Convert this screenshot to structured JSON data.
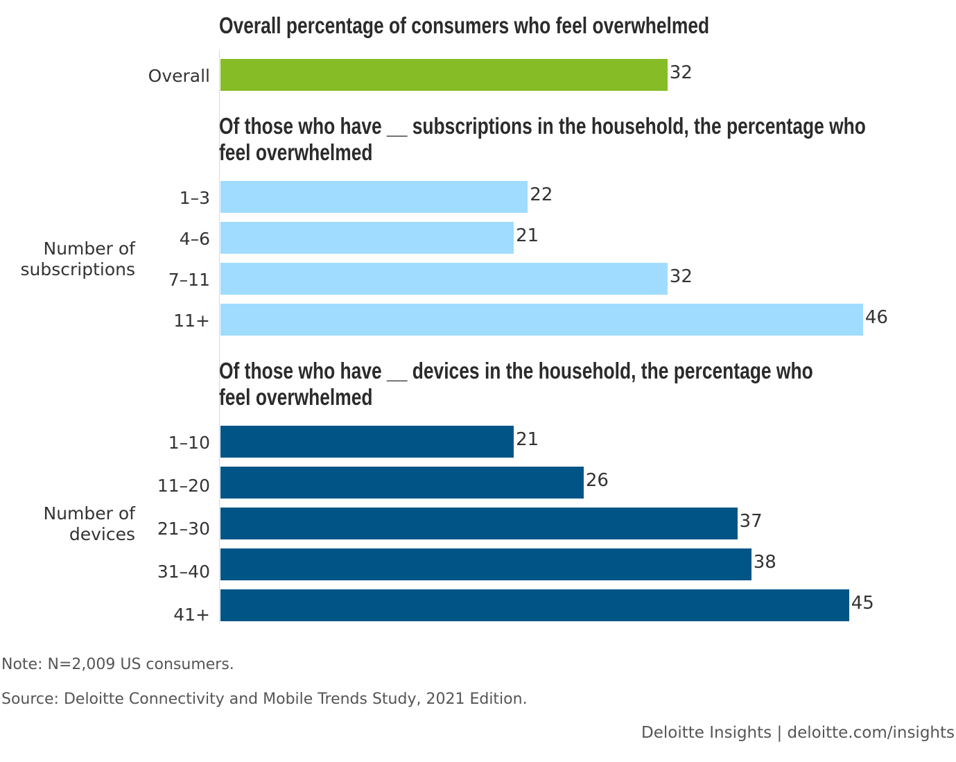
{
  "chart_data": {
    "type": "bar",
    "orientation": "horizontal",
    "xlim": [
      0,
      50
    ],
    "grid": false,
    "sections": [
      {
        "title": "Overall percentage of consumers who feel overwhelmed",
        "group_label": "",
        "color": "#86bc25",
        "categories": [
          "Overall"
        ],
        "values": [
          32
        ]
      },
      {
        "title": "Of those who have __ subscriptions in the household, the percentage who\nfeel overwhelmed",
        "group_label": "Number of\nsubscriptions",
        "color": "#a0dcff",
        "categories": [
          "1–3",
          "4–6",
          "7–11",
          "11+"
        ],
        "values": [
          22,
          21,
          32,
          46
        ]
      },
      {
        "title": "Of those who have __ devices in the household, the percentage who\nfeel overwhelmed",
        "group_label": "Number of\ndevices",
        "color": "#005587",
        "categories": [
          "1–10",
          "11–20",
          "21–30",
          "31–40",
          "41+"
        ],
        "values": [
          21,
          26,
          37,
          38,
          45
        ]
      }
    ]
  },
  "note": "Note: N=2,009 US consumers.",
  "source": "Source: Deloitte Connectivity and Mobile Trends Study, 2021 Edition.",
  "footer": "Deloitte Insights | deloitte.com/insights"
}
